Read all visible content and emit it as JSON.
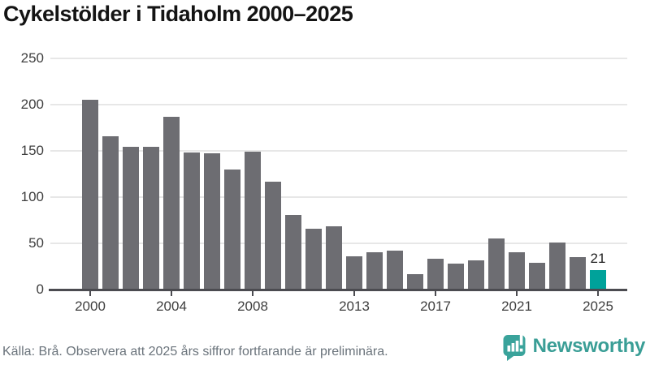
{
  "title": "Cykelstölder i Tidaholm 2000–2025",
  "colors": {
    "bar": "#6d6d72",
    "highlight": "#00a29a",
    "grid": "#e7e7e7",
    "axis": "#4b4b50",
    "brand": "#3a9e96"
  },
  "chart_data": {
    "type": "bar",
    "title": "Cykelstölder i Tidaholm 2000–2025",
    "categories": [
      2000,
      2001,
      2002,
      2003,
      2004,
      2005,
      2006,
      2007,
      2008,
      2009,
      2010,
      2011,
      2012,
      2013,
      2014,
      2015,
      2016,
      2017,
      2018,
      2019,
      2020,
      2021,
      2022,
      2023,
      2024,
      2025
    ],
    "values": [
      205,
      166,
      154,
      154,
      187,
      148,
      147,
      130,
      149,
      117,
      81,
      66,
      68,
      36,
      40,
      42,
      17,
      33,
      28,
      32,
      55,
      40,
      29,
      51,
      35,
      21
    ],
    "highlight_index": 25,
    "highlight_value_label": "21",
    "y_ticks": [
      0,
      50,
      100,
      150,
      200,
      250
    ],
    "ylim": [
      0,
      250
    ],
    "x_tick_labels": [
      "2000",
      "2004",
      "2008",
      "2013",
      "2017",
      "2021",
      "2025"
    ],
    "grid": "horizontal",
    "legend": "none"
  },
  "footer": {
    "source": "Källa: Brå. Observera att 2025 års siffror fortfarande är preliminära.",
    "brand": "Newsworthy"
  }
}
